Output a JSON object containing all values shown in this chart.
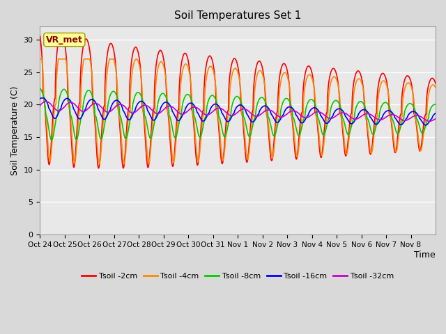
{
  "title": "Soil Temperatures Set 1",
  "xlabel": "Time",
  "ylabel": "Soil Temperature (C)",
  "ylim": [
    0,
    32
  ],
  "yticks": [
    0,
    5,
    10,
    15,
    20,
    25,
    30
  ],
  "annotation": "VR_met",
  "fig_facecolor": "#d9d9d9",
  "ax_facecolor": "#e8e8e8",
  "series_colors": [
    "#ff0000",
    "#ff8800",
    "#00cc00",
    "#0000ff",
    "#cc00cc"
  ],
  "series_labels": [
    "Tsoil -2cm",
    "Tsoil -4cm",
    "Tsoil -8cm",
    "Tsoil -16cm",
    "Tsoil -32cm"
  ],
  "xtick_labels": [
    "Oct 24",
    "Oct 25",
    "Oct 26",
    "Oct 27",
    "Oct 28",
    "Oct 29",
    "Oct 30",
    "Oct 31",
    "Nov 1",
    "Nov 2",
    "Nov 3",
    "Nov 4",
    "Nov 5",
    "Nov 6",
    "Nov 7",
    "Nov 8"
  ],
  "num_days": 16,
  "points_per_day": 96,
  "series_lw": [
    1.2,
    1.2,
    1.2,
    1.2,
    1.2
  ],
  "grid_color": "#ffffff",
  "annotation_color": "#8b0000",
  "annotation_bg": "#ffff99",
  "annotation_edge": "#999900"
}
